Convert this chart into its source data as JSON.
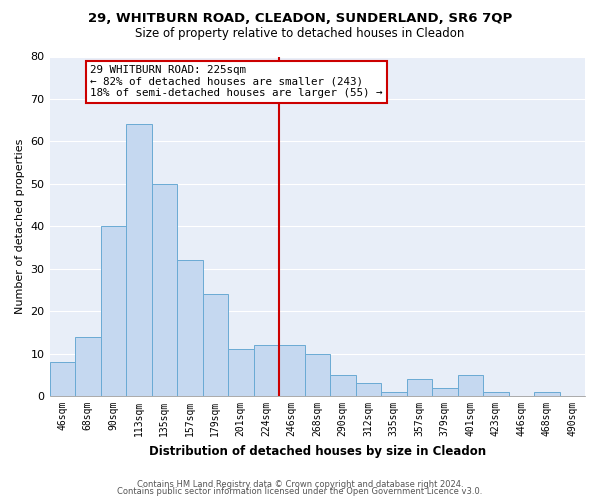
{
  "title1": "29, WHITBURN ROAD, CLEADON, SUNDERLAND, SR6 7QP",
  "title2": "Size of property relative to detached houses in Cleadon",
  "xlabel": "Distribution of detached houses by size in Cleadon",
  "ylabel": "Number of detached properties",
  "bar_labels": [
    "46sqm",
    "68sqm",
    "90sqm",
    "113sqm",
    "135sqm",
    "157sqm",
    "179sqm",
    "201sqm",
    "224sqm",
    "246sqm",
    "268sqm",
    "290sqm",
    "312sqm",
    "335sqm",
    "357sqm",
    "379sqm",
    "401sqm",
    "423sqm",
    "446sqm",
    "468sqm",
    "490sqm"
  ],
  "bar_heights": [
    8,
    14,
    40,
    64,
    50,
    32,
    24,
    11,
    12,
    12,
    10,
    5,
    3,
    1,
    4,
    2,
    5,
    1,
    0,
    1,
    0
  ],
  "bar_color": "#c5d8f0",
  "bar_edge_color": "#6aaad4",
  "vline_color": "#cc0000",
  "annotation_title": "29 WHITBURN ROAD: 225sqm",
  "annotation_line1": "← 82% of detached houses are smaller (243)",
  "annotation_line2": "18% of semi-detached houses are larger (55) →",
  "annotation_box_color": "#ffffff",
  "annotation_box_edge": "#cc0000",
  "ylim": [
    0,
    80
  ],
  "yticks": [
    0,
    10,
    20,
    30,
    40,
    50,
    60,
    70,
    80
  ],
  "plot_bg": "#e8eef8",
  "fig_bg": "#ffffff",
  "grid_color": "#ffffff",
  "footer1": "Contains HM Land Registry data © Crown copyright and database right 2024.",
  "footer2": "Contains public sector information licensed under the Open Government Licence v3.0."
}
